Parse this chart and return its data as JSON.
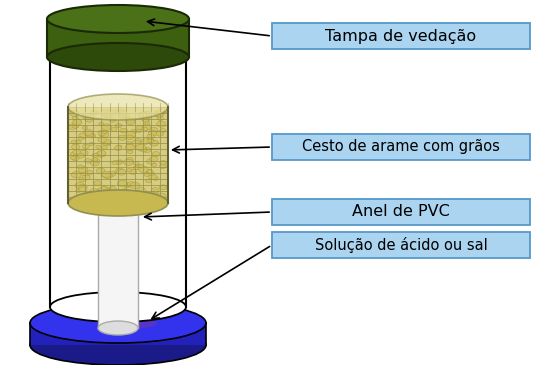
{
  "labels": {
    "tampa": "Tampa de vedação",
    "cesto": "Cesto de arame com grãos",
    "anel": "Anel de PVC",
    "solucao": "Solução de ácido ou sal"
  },
  "colors": {
    "background": "#ffffff",
    "cap_dark": "#2d4a0a",
    "cap_mid": "#3d5f10",
    "cap_light": "#4a7018",
    "cap_outline": "#1a2a05",
    "jar_outline": "#000000",
    "basket_fill": "#d8cc80",
    "basket_grain": "#c8b850",
    "basket_grid": "#909050",
    "basket_top_fill": "#e0d890",
    "sol_top": "#3333ee",
    "sol_mid": "#2222bb",
    "sol_bot": "#1a1a88",
    "sol_purple": "#7733aa",
    "pvc_fill": "#f5f5f5",
    "pvc_outline": "#aaaaaa",
    "label_box": "#aad4f0",
    "label_outline": "#5599cc",
    "label_text": "#000000",
    "arrow": "#000000"
  },
  "figsize": [
    5.36,
    3.65
  ],
  "dpi": 100
}
